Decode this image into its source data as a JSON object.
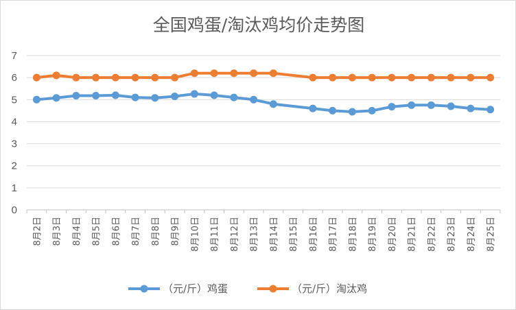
{
  "chart_data": {
    "type": "line",
    "title": "全国鸡蛋/淘汰鸡均价走势图",
    "xlabel": "",
    "ylabel": "",
    "ylim": [
      0,
      7
    ],
    "yticks": [
      0,
      1,
      2,
      3,
      4,
      5,
      6,
      7
    ],
    "grid": "horizontal",
    "legend_position": "bottom",
    "categories": [
      "8月2日",
      "8月3日",
      "8月4日",
      "8月5日",
      "8月6日",
      "8月7日",
      "8月8日",
      "8月9日",
      "8月10日",
      "8月11日",
      "8月12日",
      "8月13日",
      "8月14日",
      "8月15日",
      "8月16日",
      "8月17日",
      "8月18日",
      "8月19日",
      "8月20日",
      "8月21日",
      "8月22日",
      "8月23日",
      "8月24日",
      "8月25日"
    ],
    "series": [
      {
        "name": "（元/斤）鸡蛋",
        "color": "#5b9bd5",
        "values": [
          5.0,
          5.08,
          5.18,
          5.18,
          5.2,
          5.1,
          5.08,
          5.15,
          5.26,
          5.2,
          5.1,
          5.0,
          4.8,
          null,
          4.6,
          4.5,
          4.45,
          4.5,
          4.68,
          4.75,
          4.75,
          4.7,
          4.6,
          4.55
        ]
      },
      {
        "name": "（元/斤）淘汰鸡",
        "color": "#ed7d31",
        "values": [
          6.0,
          6.1,
          6.0,
          6.0,
          6.0,
          6.0,
          6.0,
          6.0,
          6.2,
          6.2,
          6.2,
          6.2,
          6.2,
          null,
          6.0,
          6.0,
          6.0,
          6.0,
          6.0,
          6.0,
          6.0,
          6.0,
          6.0,
          6.0
        ]
      }
    ]
  }
}
